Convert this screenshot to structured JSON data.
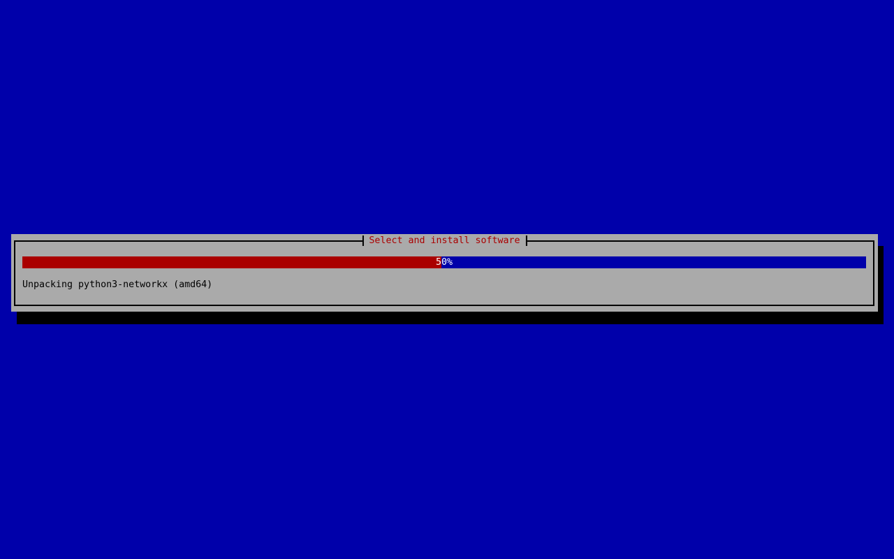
{
  "installer": {
    "dialog": {
      "title": "Select and install software",
      "progress": {
        "percent": 50,
        "label": "50%"
      },
      "status_message": "Unpacking python3-networkx (amd64)"
    },
    "colors": {
      "background_blue": "#0000AA",
      "dialog_gray": "#AAAAAA",
      "progress_fill_red": "#AA0000",
      "progress_track_blue": "#0000AA",
      "title_red": "#AA0000",
      "border_black": "#000000",
      "percent_text_white": "#FFFFFF",
      "message_text_black": "#000000"
    }
  }
}
